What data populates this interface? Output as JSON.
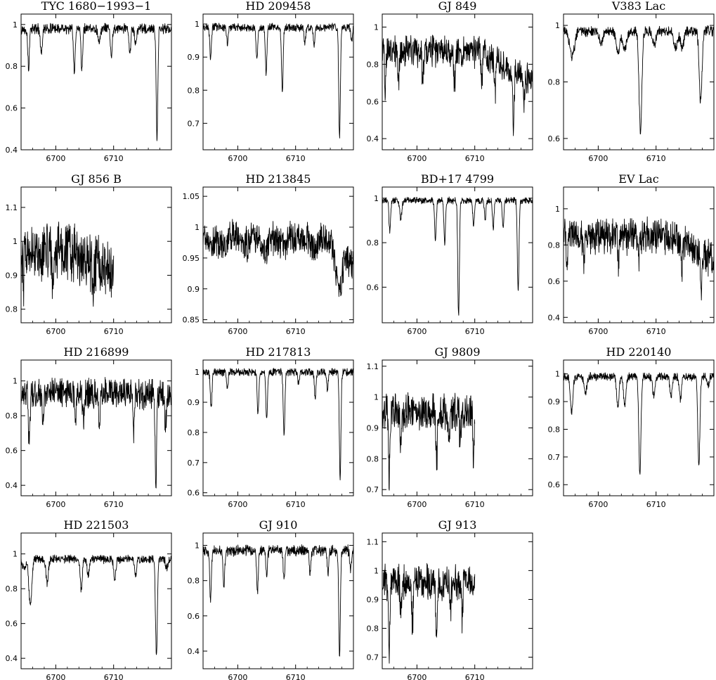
{
  "figure": {
    "rows": 4,
    "cols": 4
  },
  "chart_data": [
    {
      "type": "line",
      "title": "TYC 1680−1993−1",
      "xlim": [
        6694,
        6720
      ],
      "ylim": [
        0.4,
        1.05
      ],
      "x_ticks": [
        6700,
        6710
      ],
      "y_ticks": [
        0.4,
        0.6,
        0.8,
        1
      ],
      "series": {
        "base": 0.98,
        "noise": 0.02,
        "end": 6720,
        "lines": [
          {
            "x": 6695.3,
            "d": 0.19,
            "w": 0.14
          },
          {
            "x": 6697.5,
            "d": 0.12,
            "w": 0.18
          },
          {
            "x": 6703.2,
            "d": 0.21,
            "w": 0.14
          },
          {
            "x": 6704.5,
            "d": 0.2,
            "w": 0.14
          },
          {
            "x": 6707.5,
            "d": 0.07,
            "w": 0.2
          },
          {
            "x": 6709.6,
            "d": 0.14,
            "w": 0.15
          },
          {
            "x": 6712.8,
            "d": 0.12,
            "w": 0.15
          },
          {
            "x": 6713.8,
            "d": 0.08,
            "w": 0.15
          },
          {
            "x": 6717.5,
            "d": 0.53,
            "w": 0.14
          }
        ]
      }
    },
    {
      "type": "line",
      "title": "HD 209458",
      "xlim": [
        6694,
        6720
      ],
      "ylim": [
        0.62,
        1.03
      ],
      "x_ticks": [
        6700,
        6710
      ],
      "y_ticks": [
        0.7,
        0.8,
        0.9,
        1
      ],
      "series": {
        "base": 0.99,
        "noise": 0.01,
        "end": 6720,
        "lines": [
          {
            "x": 6695.3,
            "d": 0.1,
            "w": 0.14
          },
          {
            "x": 6698.2,
            "d": 0.05,
            "w": 0.14
          },
          {
            "x": 6703.3,
            "d": 0.1,
            "w": 0.14
          },
          {
            "x": 6704.9,
            "d": 0.14,
            "w": 0.14
          },
          {
            "x": 6707.7,
            "d": 0.19,
            "w": 0.14
          },
          {
            "x": 6711.6,
            "d": 0.05,
            "w": 0.14
          },
          {
            "x": 6713.2,
            "d": 0.06,
            "w": 0.14
          },
          {
            "x": 6717.6,
            "d": 0.34,
            "w": 0.14
          },
          {
            "x": 6719.7,
            "d": 0.04,
            "w": 0.14
          }
        ]
      }
    },
    {
      "type": "line",
      "title": "GJ 849",
      "xlim": [
        6694,
        6720
      ],
      "ylim": [
        0.34,
        1.07
      ],
      "x_ticks": [
        6700,
        6710
      ],
      "y_ticks": [
        0.4,
        0.6,
        0.8,
        1
      ],
      "series": {
        "base": 0.87,
        "noise": 0.07,
        "slope": [
          6711,
          -0.018
        ],
        "end": 6720,
        "lines": [
          {
            "x": 6694.5,
            "d": 0.2,
            "w": 0.12
          },
          {
            "x": 6696.8,
            "d": 0.18,
            "w": 0.12
          },
          {
            "x": 6701,
            "d": 0.16,
            "w": 0.12
          },
          {
            "x": 6706.5,
            "d": 0.2,
            "w": 0.12
          },
          {
            "x": 6711.2,
            "d": 0.2,
            "w": 0.12
          },
          {
            "x": 6713.5,
            "d": 0.2,
            "w": 0.12
          },
          {
            "x": 6716.7,
            "d": 0.3,
            "w": 0.12
          },
          {
            "x": 6718.5,
            "d": 0.15,
            "w": 0.12
          }
        ]
      }
    },
    {
      "type": "line",
      "title": "V383 Lac",
      "xlim": [
        6694,
        6720
      ],
      "ylim": [
        0.56,
        1.04
      ],
      "x_ticks": [
        6700,
        6710
      ],
      "y_ticks": [
        0.6,
        0.8,
        1
      ],
      "series": {
        "base": 0.98,
        "noise": 0.015,
        "end": 6720,
        "lines": [
          {
            "x": 6695.5,
            "d": 0.09,
            "w": 0.4
          },
          {
            "x": 6700.5,
            "d": 0.05,
            "w": 0.3
          },
          {
            "x": 6703.4,
            "d": 0.08,
            "w": 0.3
          },
          {
            "x": 6704.6,
            "d": 0.07,
            "w": 0.3
          },
          {
            "x": 6707.3,
            "d": 0.36,
            "w": 0.24
          },
          {
            "x": 6709.7,
            "d": 0.05,
            "w": 0.3
          },
          {
            "x": 6713.4,
            "d": 0.06,
            "w": 0.3
          },
          {
            "x": 6714.5,
            "d": 0.06,
            "w": 0.3
          },
          {
            "x": 6717.7,
            "d": 0.25,
            "w": 0.24
          }
        ]
      }
    },
    {
      "type": "line",
      "title": "GJ 856 B",
      "xlim": [
        6694,
        6720
      ],
      "ylim": [
        0.76,
        1.16
      ],
      "x_ticks": [
        6700,
        6710
      ],
      "y_ticks": [
        0.8,
        0.9,
        1,
        1.1
      ],
      "series": {
        "base": 0.97,
        "noise": 0.07,
        "slope": [
          6703,
          -0.01
        ],
        "end": 6710,
        "lines": [
          {
            "x": 6694.4,
            "d": 0.08,
            "w": 0.12
          },
          {
            "x": 6699.5,
            "d": 0.07,
            "w": 0.12
          },
          {
            "x": 6706.5,
            "d": 0.08,
            "w": 0.12
          }
        ]
      }
    },
    {
      "type": "line",
      "title": "HD 213845",
      "xlim": [
        6694,
        6720
      ],
      "ylim": [
        0.845,
        1.065
      ],
      "x_ticks": [
        6700,
        6710
      ],
      "y_ticks": [
        0.85,
        0.9,
        0.95,
        1,
        1.05
      ],
      "series": {
        "base": 0.985,
        "noise": 0.022,
        "slope": [
          6715,
          -0.006
        ],
        "end": 6720,
        "lines": [
          {
            "x": 6695,
            "d": 0.01,
            "w": 0.8
          },
          {
            "x": 6697.5,
            "d": 0.015,
            "w": 0.7
          },
          {
            "x": 6701.5,
            "d": 0.012,
            "w": 0.7
          },
          {
            "x": 6704.5,
            "d": 0.02,
            "w": 0.7
          },
          {
            "x": 6707.8,
            "d": 0.015,
            "w": 0.7
          },
          {
            "x": 6713.2,
            "d": 0.025,
            "w": 0.5
          },
          {
            "x": 6717.5,
            "d": 0.065,
            "w": 0.6
          },
          {
            "x": 6719.5,
            "d": 0.02,
            "w": 0.5
          }
        ]
      }
    },
    {
      "type": "line",
      "title": "BD+17 4799",
      "xlim": [
        6694,
        6720
      ],
      "ylim": [
        0.44,
        1.05
      ],
      "x_ticks": [
        6700,
        6710
      ],
      "y_ticks": [
        0.6,
        0.8,
        1
      ],
      "series": {
        "base": 0.99,
        "noise": 0.012,
        "end": 6720,
        "lines": [
          {
            "x": 6695.3,
            "d": 0.14,
            "w": 0.14
          },
          {
            "x": 6697.2,
            "d": 0.08,
            "w": 0.18
          },
          {
            "x": 6703.2,
            "d": 0.18,
            "w": 0.14
          },
          {
            "x": 6704.8,
            "d": 0.19,
            "w": 0.14
          },
          {
            "x": 6707.2,
            "d": 0.52,
            "w": 0.14
          },
          {
            "x": 6709.8,
            "d": 0.11,
            "w": 0.14
          },
          {
            "x": 6711.8,
            "d": 0.08,
            "w": 0.14
          },
          {
            "x": 6713.2,
            "d": 0.12,
            "w": 0.14
          },
          {
            "x": 6714.9,
            "d": 0.12,
            "w": 0.14
          },
          {
            "x": 6717.5,
            "d": 0.41,
            "w": 0.14
          }
        ]
      }
    },
    {
      "type": "line",
      "title": "EV Lac",
      "xlim": [
        6694,
        6720
      ],
      "ylim": [
        0.37,
        1.12
      ],
      "x_ticks": [
        6700,
        6710
      ],
      "y_ticks": [
        0.4,
        0.6,
        0.8,
        1
      ],
      "series": {
        "base": 0.85,
        "noise": 0.08,
        "slope": [
          6713,
          -0.02
        ],
        "end": 6720,
        "lines": [
          {
            "x": 6694.6,
            "d": 0.15,
            "w": 0.12
          },
          {
            "x": 6697.5,
            "d": 0.15,
            "w": 0.12
          },
          {
            "x": 6703.5,
            "d": 0.15,
            "w": 0.12
          },
          {
            "x": 6707,
            "d": 0.15,
            "w": 0.12
          },
          {
            "x": 6714.5,
            "d": 0.15,
            "w": 0.12
          },
          {
            "x": 6717.8,
            "d": 0.25,
            "w": 0.12
          }
        ]
      }
    },
    {
      "type": "line",
      "title": "HD 216899",
      "xlim": [
        6694,
        6720
      ],
      "ylim": [
        0.34,
        1.12
      ],
      "x_ticks": [
        6700,
        6710
      ],
      "y_ticks": [
        0.4,
        0.6,
        0.8,
        1
      ],
      "series": {
        "base": 0.93,
        "noise": 0.07,
        "end": 6720,
        "lines": [
          {
            "x": 6695.4,
            "d": 0.25,
            "w": 0.14
          },
          {
            "x": 6697.8,
            "d": 0.15,
            "w": 0.14
          },
          {
            "x": 6703.4,
            "d": 0.15,
            "w": 0.14
          },
          {
            "x": 6704.8,
            "d": 0.15,
            "w": 0.14
          },
          {
            "x": 6707.5,
            "d": 0.2,
            "w": 0.14
          },
          {
            "x": 6713.5,
            "d": 0.2,
            "w": 0.14
          },
          {
            "x": 6717.3,
            "d": 0.5,
            "w": 0.14
          },
          {
            "x": 6719,
            "d": 0.2,
            "w": 0.14
          }
        ]
      }
    },
    {
      "type": "line",
      "title": "HD 217813",
      "xlim": [
        6694,
        6720
      ],
      "ylim": [
        0.59,
        1.04
      ],
      "x_ticks": [
        6700,
        6710
      ],
      "y_ticks": [
        0.6,
        0.7,
        0.8,
        0.9,
        1
      ],
      "series": {
        "base": 1.0,
        "noise": 0.01,
        "end": 6720,
        "lines": [
          {
            "x": 6695.4,
            "d": 0.12,
            "w": 0.14
          },
          {
            "x": 6698.2,
            "d": 0.05,
            "w": 0.14
          },
          {
            "x": 6703.5,
            "d": 0.14,
            "w": 0.14
          },
          {
            "x": 6705,
            "d": 0.16,
            "w": 0.14
          },
          {
            "x": 6708,
            "d": 0.21,
            "w": 0.14
          },
          {
            "x": 6710.5,
            "d": 0.04,
            "w": 0.14
          },
          {
            "x": 6713.4,
            "d": 0.09,
            "w": 0.14
          },
          {
            "x": 6715.5,
            "d": 0.06,
            "w": 0.14
          },
          {
            "x": 6717.7,
            "d": 0.35,
            "w": 0.14
          }
        ]
      }
    },
    {
      "type": "line",
      "title": "GJ 9809",
      "xlim": [
        6694,
        6720
      ],
      "ylim": [
        0.68,
        1.12
      ],
      "x_ticks": [
        6700,
        6710
      ],
      "y_ticks": [
        0.7,
        0.8,
        0.9,
        1,
        1.1
      ],
      "series": {
        "base": 0.95,
        "noise": 0.05,
        "end": 6710,
        "lines": [
          {
            "x": 6695.2,
            "d": 0.2,
            "w": 0.12
          },
          {
            "x": 6697.2,
            "d": 0.1,
            "w": 0.12
          },
          {
            "x": 6703.4,
            "d": 0.17,
            "w": 0.12
          },
          {
            "x": 6705.5,
            "d": 0.1,
            "w": 0.12
          },
          {
            "x": 6707.5,
            "d": 0.12,
            "w": 0.12
          },
          {
            "x": 6709.8,
            "d": 0.16,
            "w": 0.12
          }
        ]
      }
    },
    {
      "type": "line",
      "title": "HD 220140",
      "xlim": [
        6694,
        6720
      ],
      "ylim": [
        0.56,
        1.05
      ],
      "x_ticks": [
        6700,
        6710
      ],
      "y_ticks": [
        0.6,
        0.7,
        0.8,
        0.9,
        1
      ],
      "series": {
        "base": 0.99,
        "noise": 0.012,
        "end": 6720,
        "lines": [
          {
            "x": 6695.4,
            "d": 0.13,
            "w": 0.22
          },
          {
            "x": 6697.8,
            "d": 0.06,
            "w": 0.24
          },
          {
            "x": 6703.4,
            "d": 0.11,
            "w": 0.2
          },
          {
            "x": 6704.6,
            "d": 0.11,
            "w": 0.2
          },
          {
            "x": 6707.2,
            "d": 0.36,
            "w": 0.18
          },
          {
            "x": 6709.6,
            "d": 0.07,
            "w": 0.2
          },
          {
            "x": 6712.6,
            "d": 0.07,
            "w": 0.2
          },
          {
            "x": 6714.2,
            "d": 0.08,
            "w": 0.2
          },
          {
            "x": 6717.4,
            "d": 0.32,
            "w": 0.18
          },
          {
            "x": 6719,
            "d": 0.03,
            "w": 0.2
          }
        ]
      }
    },
    {
      "type": "line",
      "title": "HD 221503",
      "xlim": [
        6694,
        6720
      ],
      "ylim": [
        0.34,
        1.12
      ],
      "x_ticks": [
        6700,
        6710
      ],
      "y_ticks": [
        0.4,
        0.6,
        0.8,
        1
      ],
      "series": {
        "base": 0.97,
        "noise": 0.02,
        "end": 6720,
        "lines": [
          {
            "x": 6694.5,
            "d": 0.05,
            "w": 0.3
          },
          {
            "x": 6695.6,
            "d": 0.26,
            "w": 0.25
          },
          {
            "x": 6698.5,
            "d": 0.14,
            "w": 0.2
          },
          {
            "x": 6704.4,
            "d": 0.18,
            "w": 0.18
          },
          {
            "x": 6705.6,
            "d": 0.1,
            "w": 0.18
          },
          {
            "x": 6710.2,
            "d": 0.12,
            "w": 0.18
          },
          {
            "x": 6713.8,
            "d": 0.1,
            "w": 0.18
          },
          {
            "x": 6717.4,
            "d": 0.56,
            "w": 0.16
          },
          {
            "x": 6719.2,
            "d": 0.05,
            "w": 0.2
          }
        ]
      }
    },
    {
      "type": "line",
      "title": "GJ 910",
      "xlim": [
        6694,
        6720
      ],
      "ylim": [
        0.3,
        1.07
      ],
      "x_ticks": [
        6700,
        6710
      ],
      "y_ticks": [
        0.4,
        0.6,
        0.8,
        1
      ],
      "series": {
        "base": 0.97,
        "noise": 0.025,
        "end": 6720,
        "lines": [
          {
            "x": 6695.3,
            "d": 0.28,
            "w": 0.14
          },
          {
            "x": 6697.6,
            "d": 0.2,
            "w": 0.14
          },
          {
            "x": 6703.4,
            "d": 0.24,
            "w": 0.14
          },
          {
            "x": 6705,
            "d": 0.14,
            "w": 0.14
          },
          {
            "x": 6708,
            "d": 0.16,
            "w": 0.14
          },
          {
            "x": 6712.5,
            "d": 0.13,
            "w": 0.14
          },
          {
            "x": 6715.6,
            "d": 0.13,
            "w": 0.14
          },
          {
            "x": 6717.6,
            "d": 0.6,
            "w": 0.14
          },
          {
            "x": 6719.5,
            "d": 0.1,
            "w": 0.14
          }
        ]
      }
    },
    {
      "type": "line",
      "title": "GJ 913",
      "xlim": [
        6694,
        6720
      ],
      "ylim": [
        0.66,
        1.13
      ],
      "x_ticks": [
        6700,
        6710
      ],
      "y_ticks": [
        0.7,
        0.8,
        0.9,
        1,
        1.1
      ],
      "series": {
        "base": 0.96,
        "noise": 0.05,
        "end": 6710,
        "lines": [
          {
            "x": 6695.2,
            "d": 0.24,
            "w": 0.12
          },
          {
            "x": 6697.2,
            "d": 0.1,
            "w": 0.12
          },
          {
            "x": 6699.2,
            "d": 0.16,
            "w": 0.12
          },
          {
            "x": 6703.4,
            "d": 0.22,
            "w": 0.12
          },
          {
            "x": 6705.8,
            "d": 0.1,
            "w": 0.12
          },
          {
            "x": 6707.8,
            "d": 0.12,
            "w": 0.12
          }
        ]
      }
    }
  ]
}
